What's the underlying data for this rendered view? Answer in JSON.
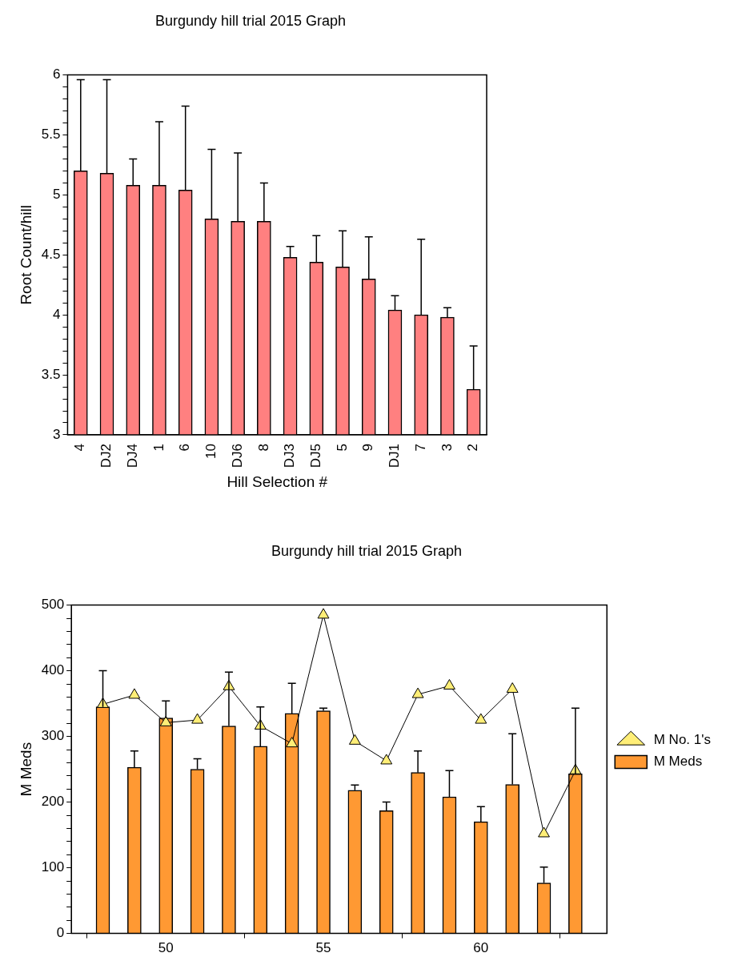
{
  "chart_data": [
    {
      "type": "bar",
      "title": "Burgundy hill trial 2015 Graph",
      "xlabel": "Hill Selection #",
      "ylabel": "Root Count/hill",
      "categories": [
        "4",
        "DJ2",
        "DJ4",
        "1",
        "6",
        "10",
        "DJ6",
        "8",
        "DJ3",
        "DJ5",
        "5",
        "9",
        "DJ1",
        "7",
        "3",
        "2"
      ],
      "values": [
        5.2,
        5.18,
        5.08,
        5.08,
        5.04,
        4.8,
        4.78,
        4.78,
        4.48,
        4.44,
        4.4,
        4.3,
        4.04,
        4.0,
        3.98,
        3.38
      ],
      "errors": [
        [
          5.2,
          5.96
        ],
        [
          5.18,
          5.96
        ],
        [
          5.08,
          5.3
        ],
        [
          5.08,
          5.61
        ],
        [
          5.04,
          5.74
        ],
        [
          4.8,
          5.38
        ],
        [
          4.78,
          5.35
        ],
        [
          4.78,
          5.1
        ],
        [
          4.48,
          4.57
        ],
        [
          4.44,
          4.66
        ],
        [
          4.4,
          4.7
        ],
        [
          4.3,
          4.65
        ],
        [
          4.04,
          4.16
        ],
        [
          4.0,
          4.63
        ],
        [
          3.98,
          4.06
        ],
        [
          3.38,
          3.74
        ]
      ],
      "color": "#ff8080",
      "ylim": [
        3,
        6
      ],
      "yticks": [
        3,
        {
          "value": 3.1,
          "label": null
        },
        {
          "value": 3.2,
          "label": null
        },
        {
          "value": 3.3,
          "label": null
        },
        {
          "value": 3.4,
          "label": null
        },
        3.5,
        {
          "value": 3.6,
          "label": null
        },
        {
          "value": 3.7,
          "label": null
        },
        {
          "value": 3.8,
          "label": null
        },
        {
          "value": 3.9,
          "label": null
        },
        4,
        {
          "value": 4.1,
          "label": null
        },
        {
          "value": 4.2,
          "label": null
        },
        {
          "value": 4.3,
          "label": null
        },
        {
          "value": 4.4,
          "label": null
        },
        4.5,
        {
          "value": 4.6,
          "label": null
        },
        {
          "value": 4.7,
          "label": null
        },
        {
          "value": 4.8,
          "label": null
        },
        {
          "value": 4.9,
          "label": null
        },
        5,
        {
          "value": 5.1,
          "label": null
        },
        {
          "value": 5.2,
          "label": null
        },
        {
          "value": 5.3,
          "label": null
        },
        {
          "value": 5.4,
          "label": null
        },
        5.5,
        {
          "value": 5.6,
          "label": null
        },
        {
          "value": 5.7,
          "label": null
        },
        {
          "value": 5.8,
          "label": null
        },
        {
          "value": 5.9,
          "label": null
        },
        6
      ],
      "grid": false,
      "legend": false
    },
    {
      "type": "bar",
      "title": "Burgundy hill trial 2015 Graph",
      "ylabel": "M Meds",
      "x": [
        48,
        49,
        50,
        51,
        52,
        53,
        54,
        55,
        56,
        57,
        58,
        59,
        60,
        61,
        62,
        63
      ],
      "series": [
        {
          "name": "M Meds",
          "type": "bar",
          "color": "#ff9933",
          "values": [
            345,
            253,
            328,
            250,
            316,
            285,
            335,
            339,
            218,
            187,
            245,
            208,
            170,
            227,
            77,
            243
          ],
          "errors": [
            [
              345,
              400
            ],
            [
              253,
              278
            ],
            [
              328,
              354
            ],
            [
              250,
              266
            ],
            [
              316,
              398
            ],
            [
              285,
              345
            ],
            [
              335,
              381
            ],
            [
              339,
              343
            ],
            [
              218,
              226
            ],
            [
              187,
              200
            ],
            [
              245,
              278
            ],
            [
              208,
              248
            ],
            [
              170,
              193
            ],
            [
              227,
              304
            ],
            [
              77,
              101
            ],
            [
              243,
              343
            ]
          ]
        },
        {
          "name": "M No. 1's",
          "type": "line",
          "color": "#ffee77",
          "marker": "triangle",
          "values": [
            349,
            363,
            321,
            325,
            376,
            316,
            289,
            485,
            293,
            263,
            364,
            377,
            325,
            372,
            152,
            248
          ]
        }
      ],
      "xlim": [
        47,
        64
      ],
      "xticks": [
        50,
        55,
        60
      ],
      "ylim": [
        0,
        500
      ],
      "yticks": [
        0,
        {
          "value": 20,
          "label": null
        },
        {
          "value": 40,
          "label": null
        },
        {
          "value": 60,
          "label": null
        },
        {
          "value": 80,
          "label": null
        },
        100,
        {
          "value": 120,
          "label": null
        },
        {
          "value": 140,
          "label": null
        },
        {
          "value": 160,
          "label": null
        },
        {
          "value": 180,
          "label": null
        },
        200,
        {
          "value": 220,
          "label": null
        },
        {
          "value": 240,
          "label": null
        },
        {
          "value": 260,
          "label": null
        },
        {
          "value": 280,
          "label": null
        },
        300,
        {
          "value": 320,
          "label": null
        },
        {
          "value": 340,
          "label": null
        },
        {
          "value": 360,
          "label": null
        },
        {
          "value": 380,
          "label": null
        },
        400,
        {
          "value": 420,
          "label": null
        },
        {
          "value": 440,
          "label": null
        },
        {
          "value": 460,
          "label": null
        },
        {
          "value": 480,
          "label": null
        },
        500
      ],
      "grid": false,
      "legend": "right"
    }
  ]
}
